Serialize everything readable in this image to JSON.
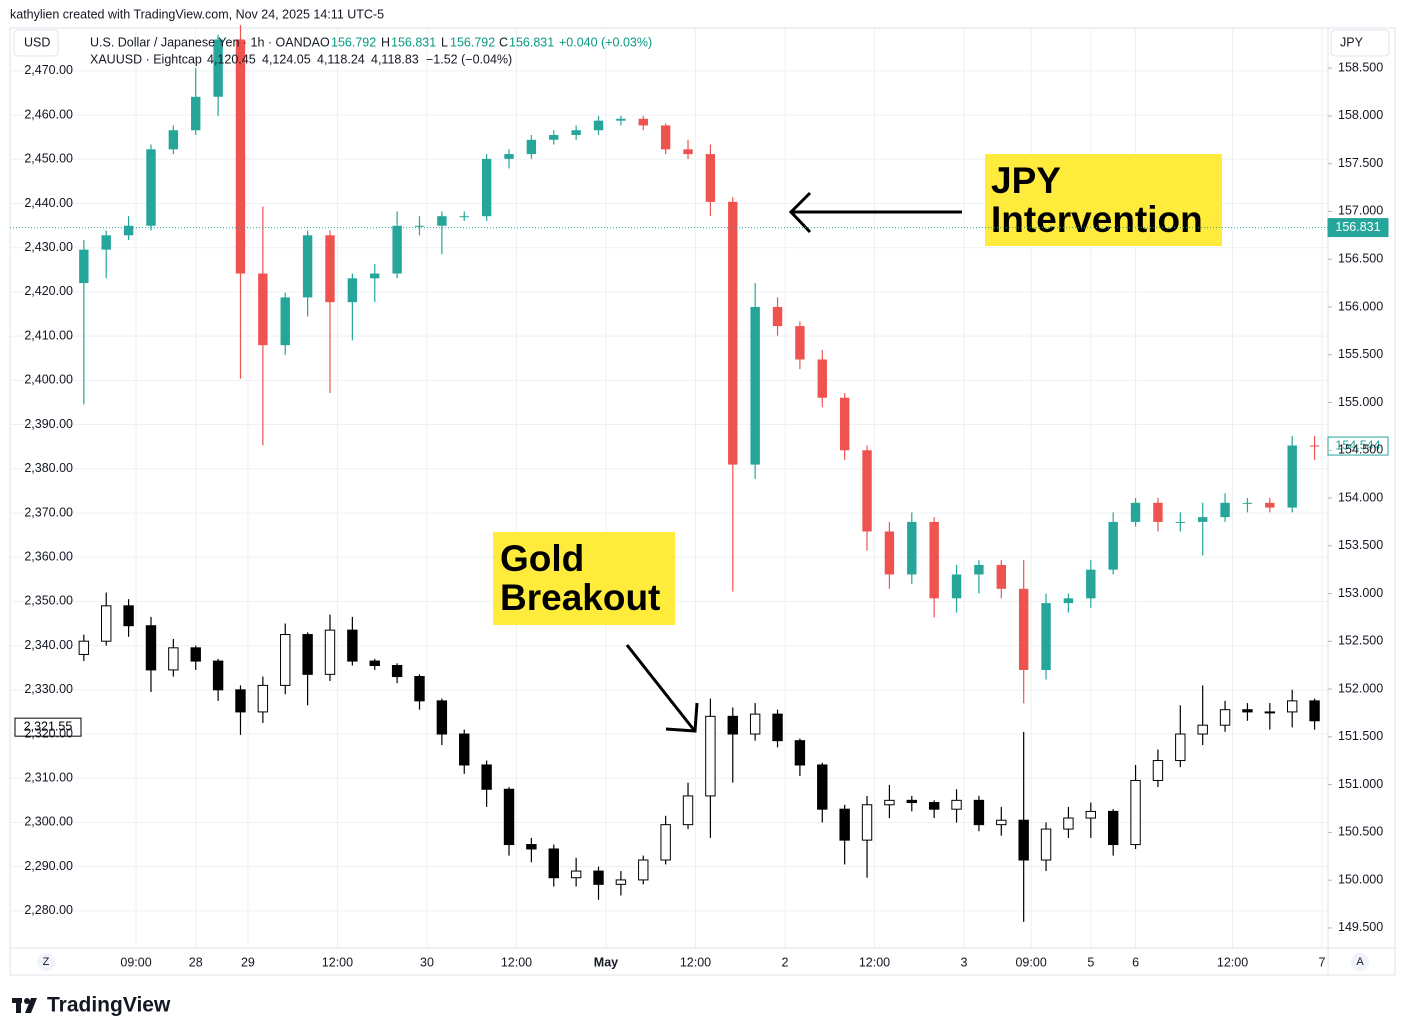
{
  "header": {
    "credit": "kathylien created with TradingView.com, Nov 24, 2025 14:11 UTC-5",
    "left_scale": "USD",
    "right_scale": "JPY"
  },
  "legend": {
    "line1": {
      "symbol": "U.S. Dollar / Japanese Yen · 1h · OANDA",
      "o_label": "O",
      "o": "156.792",
      "h_label": "H",
      "h": "156.831",
      "l_label": "L",
      "l": "156.792",
      "c_label": "C",
      "c": "156.831",
      "change": "+0.040 (+0.03%)"
    },
    "line2": {
      "symbol": "XAUUSD · Eightcap",
      "o": "4,120.45",
      "h": "4,124.05",
      "l": "4,118.24",
      "c": "4,118.83",
      "change": "−1.52 (−0.04%)"
    }
  },
  "chart_data": {
    "type": "candlestick",
    "x": [
      0,
      3,
      6,
      9,
      12,
      15,
      18,
      21,
      24,
      27,
      30,
      33,
      36,
      39,
      42,
      45,
      48,
      51,
      54,
      57,
      60,
      63,
      66,
      69,
      72,
      75,
      78,
      81,
      84,
      87,
      90,
      93,
      96,
      99,
      102,
      105,
      108,
      111,
      114,
      117,
      120,
      123,
      126,
      129,
      132,
      135,
      138,
      141,
      144,
      147,
      150,
      153,
      156,
      159,
      162,
      165
    ],
    "xlim": [
      -9.9,
      166.8
    ],
    "xticks": [
      {
        "value": 7,
        "label": "09:00"
      },
      {
        "value": 15,
        "label": "28"
      },
      {
        "value": 22,
        "label": "29"
      },
      {
        "value": 34,
        "label": "12:00"
      },
      {
        "value": 46,
        "label": "30"
      },
      {
        "value": 58,
        "label": "12:00"
      },
      {
        "value": 70,
        "label": "May"
      },
      {
        "value": 82,
        "label": "12:00"
      },
      {
        "value": 94,
        "label": "2"
      },
      {
        "value": 106,
        "label": "12:00"
      },
      {
        "value": 118,
        "label": "3"
      },
      {
        "value": 127,
        "label": "09:00"
      },
      {
        "value": 135,
        "label": "5"
      },
      {
        "value": 141,
        "label": "6"
      },
      {
        "value": 154,
        "label": "12:00"
      },
      {
        "value": 166,
        "label": "7"
      }
    ],
    "ylim": [
      2271.6,
      2479.7
    ],
    "yticks": [
      {
        "value": 2280,
        "label": "2,280.00"
      },
      {
        "value": 2290,
        "label": "2,290.00"
      },
      {
        "value": 2300,
        "label": "2,300.00"
      },
      {
        "value": 2310,
        "label": "2,310.00"
      },
      {
        "value": 2320,
        "label": "2,320.00"
      },
      {
        "value": 2330,
        "label": "2,330.00"
      },
      {
        "value": 2340,
        "label": "2,340.00"
      },
      {
        "value": 2350,
        "label": "2,350.00"
      },
      {
        "value": 2360,
        "label": "2,360.00"
      },
      {
        "value": 2370,
        "label": "2,370.00"
      },
      {
        "value": 2380,
        "label": "2,380.00"
      },
      {
        "value": 2390,
        "label": "2,390.00"
      },
      {
        "value": 2400,
        "label": "2,400.00"
      },
      {
        "value": 2410,
        "label": "2,410.00"
      },
      {
        "value": 2420,
        "label": "2,420.00"
      },
      {
        "value": 2430,
        "label": "2,430.00"
      },
      {
        "value": 2440,
        "label": "2,440.00"
      },
      {
        "value": 2450,
        "label": "2,450.00"
      },
      {
        "value": 2460,
        "label": "2,460.00"
      },
      {
        "value": 2470,
        "label": "2,470.00"
      }
    ],
    "y2lim": [
      149.29,
      158.92
    ],
    "y2ticks": [
      {
        "value": 149.5,
        "label": "149.500"
      },
      {
        "value": 150,
        "label": "150.000"
      },
      {
        "value": 150.5,
        "label": "150.500"
      },
      {
        "value": 151,
        "label": "151.000"
      },
      {
        "value": 151.5,
        "label": "151.500"
      },
      {
        "value": 152,
        "label": "152.000"
      },
      {
        "value": 152.5,
        "label": "152.500"
      },
      {
        "value": 153,
        "label": "153.000"
      },
      {
        "value": 153.5,
        "label": "153.500"
      },
      {
        "value": 154,
        "label": "154.000"
      },
      {
        "value": 154.5,
        "label": "154.500"
      },
      {
        "value": 155,
        "label": "155.000"
      },
      {
        "value": 155.5,
        "label": "155.500"
      },
      {
        "value": 156,
        "label": "156.000"
      },
      {
        "value": 156.5,
        "label": "156.500"
      },
      {
        "value": 157,
        "label": "157.000"
      },
      {
        "value": 157.5,
        "label": "157.500"
      },
      {
        "value": 158,
        "label": "158.000"
      },
      {
        "value": 158.5,
        "label": "158.500"
      }
    ],
    "grid": true,
    "series": [
      {
        "axis": "y2",
        "up_color": "#26a69a",
        "down_color": "#ef5350",
        "values": [
          [
            156.25,
            156.7,
            154.98,
            156.6
          ],
          [
            156.6,
            156.8,
            156.3,
            156.75
          ],
          [
            156.75,
            156.95,
            156.7,
            156.85
          ],
          [
            156.85,
            157.7,
            156.8,
            157.65
          ],
          [
            157.65,
            157.9,
            157.6,
            157.85
          ],
          [
            157.85,
            158.5,
            157.8,
            158.2
          ],
          [
            158.2,
            158.85,
            158.0,
            158.8
          ],
          [
            158.8,
            158.95,
            155.25,
            156.35
          ],
          [
            156.35,
            157.05,
            154.55,
            155.6
          ],
          [
            155.6,
            156.15,
            155.5,
            156.1
          ],
          [
            156.1,
            156.8,
            155.9,
            156.75
          ],
          [
            156.75,
            156.8,
            155.1,
            156.05
          ],
          [
            156.05,
            156.35,
            155.65,
            156.3
          ],
          [
            156.3,
            156.45,
            156.05,
            156.35
          ],
          [
            156.35,
            157.0,
            156.3,
            156.85
          ],
          [
            156.85,
            156.95,
            156.75,
            156.85
          ],
          [
            156.85,
            157.0,
            156.55,
            156.95
          ],
          [
            156.95,
            157.0,
            156.9,
            156.95
          ],
          [
            156.95,
            157.6,
            156.9,
            157.55
          ],
          [
            157.55,
            157.65,
            157.45,
            157.6
          ],
          [
            157.6,
            157.8,
            157.55,
            157.75
          ],
          [
            157.75,
            157.85,
            157.7,
            157.8
          ],
          [
            157.8,
            157.9,
            157.75,
            157.85
          ],
          [
            157.85,
            158.0,
            157.8,
            157.95
          ],
          [
            157.95,
            158.0,
            157.9,
            157.97
          ],
          [
            157.97,
            158.0,
            157.85,
            157.9
          ],
          [
            157.9,
            157.92,
            157.6,
            157.65
          ],
          [
            157.65,
            157.75,
            157.55,
            157.6
          ],
          [
            157.6,
            157.7,
            156.95,
            157.1
          ],
          [
            157.1,
            157.15,
            153.02,
            154.35
          ],
          [
            154.35,
            156.25,
            154.2,
            156.0
          ],
          [
            156.0,
            156.1,
            155.7,
            155.8
          ],
          [
            155.8,
            155.85,
            155.35,
            155.45
          ],
          [
            155.45,
            155.55,
            154.95,
            155.05
          ],
          [
            155.05,
            155.1,
            154.4,
            154.5
          ],
          [
            154.5,
            154.55,
            153.45,
            153.65
          ],
          [
            153.65,
            153.75,
            153.05,
            153.2
          ],
          [
            153.2,
            153.85,
            153.1,
            153.75
          ],
          [
            153.75,
            153.8,
            152.75,
            152.95
          ],
          [
            152.95,
            153.3,
            152.8,
            153.2
          ],
          [
            153.2,
            153.35,
            153.0,
            153.3
          ],
          [
            153.3,
            153.35,
            152.95,
            153.05
          ],
          [
            153.05,
            153.35,
            151.85,
            152.2
          ],
          [
            152.2,
            153.0,
            152.1,
            152.9
          ],
          [
            152.9,
            153.0,
            152.8,
            152.95
          ],
          [
            152.95,
            153.35,
            152.85,
            153.25
          ],
          [
            153.25,
            153.85,
            153.2,
            153.75
          ],
          [
            153.75,
            154.0,
            153.7,
            153.95
          ],
          [
            153.95,
            154.0,
            153.65,
            153.75
          ],
          [
            153.75,
            153.85,
            153.65,
            153.75
          ],
          [
            153.75,
            153.95,
            153.4,
            153.8
          ],
          [
            153.8,
            154.05,
            153.75,
            153.95
          ],
          [
            153.95,
            154.0,
            153.85,
            153.95
          ],
          [
            153.95,
            154.0,
            153.85,
            153.9
          ],
          [
            153.9,
            154.65,
            153.85,
            154.55
          ],
          [
            154.55,
            154.65,
            154.4,
            154.54
          ]
        ]
      },
      {
        "axis": "y",
        "up_color": "#ffffff",
        "down_color": "#000000",
        "outline": "#000000",
        "values": [
          [
            2338.0,
            2342.5,
            2336.5,
            2341.0
          ],
          [
            2341.0,
            2352.0,
            2340.0,
            2349.0
          ],
          [
            2349.0,
            2350.5,
            2342.0,
            2344.5
          ],
          [
            2344.5,
            2346.5,
            2329.5,
            2334.5
          ],
          [
            2334.5,
            2341.5,
            2333.0,
            2339.5
          ],
          [
            2339.5,
            2340.0,
            2334.5,
            2336.5
          ],
          [
            2336.5,
            2337.0,
            2327.5,
            2330.0
          ],
          [
            2330.0,
            2331.0,
            2319.8,
            2325.0
          ],
          [
            2325.0,
            2333.0,
            2322.5,
            2331.0
          ],
          [
            2331.0,
            2345.0,
            2329.0,
            2342.5
          ],
          [
            2342.5,
            2343.0,
            2326.5,
            2333.5
          ],
          [
            2333.5,
            2347.0,
            2332.0,
            2343.5
          ],
          [
            2343.5,
            2346.5,
            2335.5,
            2336.5
          ],
          [
            2336.5,
            2337.0,
            2334.5,
            2335.5
          ],
          [
            2335.5,
            2336.0,
            2331.5,
            2333.0
          ],
          [
            2333.0,
            2333.5,
            2325.5,
            2327.5
          ],
          [
            2327.5,
            2328.0,
            2317.5,
            2320.0
          ],
          [
            2320.0,
            2321.0,
            2311.0,
            2313.0
          ],
          [
            2313.0,
            2314.0,
            2303.5,
            2307.5
          ],
          [
            2307.5,
            2308.0,
            2292.5,
            2295.0
          ],
          [
            2295.0,
            2296.5,
            2291.0,
            2294.0
          ],
          [
            2294.0,
            2295.0,
            2285.5,
            2287.5
          ],
          [
            2287.5,
            2292.0,
            2285.5,
            2289.0
          ],
          [
            2289.0,
            2290.0,
            2282.5,
            2286.0
          ],
          [
            2286.0,
            2289.0,
            2283.5,
            2287.0
          ],
          [
            2287.0,
            2292.5,
            2286.0,
            2291.5
          ],
          [
            2291.5,
            2301.5,
            2290.5,
            2299.5
          ],
          [
            2299.5,
            2309.0,
            2298.5,
            2306.0
          ],
          [
            2306.0,
            2328.0,
            2296.5,
            2324.0
          ],
          [
            2324.0,
            2326.0,
            2309.0,
            2320.0
          ],
          [
            2320.0,
            2327.0,
            2318.5,
            2324.5
          ],
          [
            2324.5,
            2325.5,
            2317.0,
            2318.5
          ],
          [
            2318.5,
            2319.0,
            2310.5,
            2313.0
          ],
          [
            2313.0,
            2313.5,
            2300.0,
            2303.0
          ],
          [
            2303.0,
            2304.0,
            2290.5,
            2296.0
          ],
          [
            2296.0,
            2306.0,
            2287.5,
            2304.0
          ],
          [
            2304.0,
            2308.5,
            2301.0,
            2305.0
          ],
          [
            2305.0,
            2306.0,
            2302.5,
            2304.5
          ],
          [
            2304.5,
            2305.0,
            2301.0,
            2303.0
          ],
          [
            2303.0,
            2307.5,
            2300.0,
            2305.0
          ],
          [
            2305.0,
            2306.0,
            2298.0,
            2299.5
          ],
          [
            2299.5,
            2303.5,
            2297.0,
            2300.5
          ],
          [
            2300.5,
            2320.5,
            2277.5,
            2291.5
          ],
          [
            2291.5,
            2300.0,
            2289.0,
            2298.5
          ],
          [
            2298.5,
            2303.5,
            2296.5,
            2301.0
          ],
          [
            2301.0,
            2304.5,
            2296.5,
            2302.5
          ],
          [
            2302.5,
            2303.0,
            2292.5,
            2295.0
          ],
          [
            2295.0,
            2313.0,
            2294.0,
            2309.5
          ],
          [
            2309.5,
            2316.5,
            2308.0,
            2314.0
          ],
          [
            2314.0,
            2326.5,
            2312.5,
            2320.0
          ],
          [
            2320.0,
            2331.0,
            2317.5,
            2322.0
          ],
          [
            2322.0,
            2327.5,
            2320.5,
            2325.5
          ],
          [
            2325.5,
            2327.0,
            2323.0,
            2325.0
          ],
          [
            2325.0,
            2327.0,
            2321.0,
            2325.0
          ],
          [
            2325.0,
            2330.0,
            2321.5,
            2327.5
          ],
          [
            2327.5,
            2328.0,
            2321.0,
            2323.0
          ]
        ]
      }
    ],
    "price_tags": [
      {
        "axis": "y2",
        "value": 156.831,
        "label": "156.831",
        "style": "filled",
        "color": "#26a69a",
        "line": true
      },
      {
        "axis": "y2",
        "value": 154.544,
        "label": "154.544",
        "style": "outline",
        "color": "#26a69a"
      },
      {
        "axis": "y",
        "value": 2321.55,
        "label": "2,321.55",
        "style": "outline",
        "color": "#000000"
      }
    ],
    "annotations": [
      {
        "lines": [
          "JPY",
          "Intervention"
        ]
      },
      {
        "lines": [
          "Gold",
          "Breakout"
        ]
      }
    ]
  },
  "footer": {
    "left_button": "Z",
    "right_button": "A",
    "logo": "TradingView"
  }
}
